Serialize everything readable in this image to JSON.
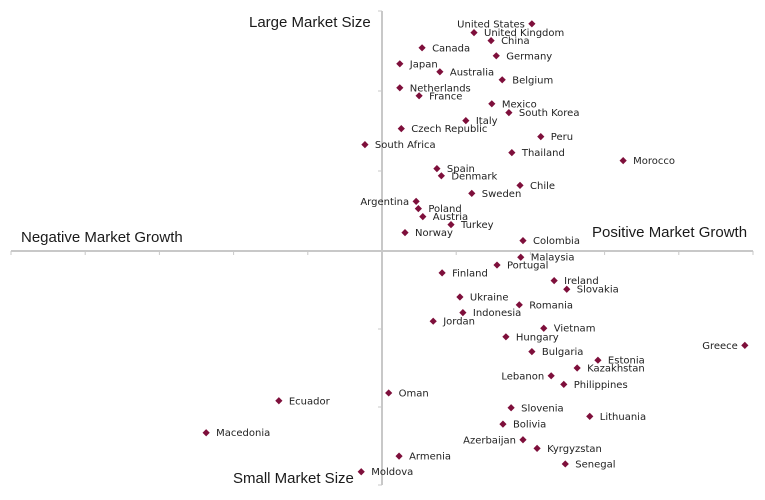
{
  "chart_data": {
    "type": "scatter",
    "title": "",
    "quadrant_labels": {
      "top": "Large Market Size",
      "bottom": "Small Market Size",
      "left": "Negative Market Growth",
      "right": "Positive Market Growth"
    },
    "xlabel": "Market Growth",
    "ylabel": "Market Size",
    "xlim": [
      -5,
      5
    ],
    "ylim": [
      -3,
      3
    ],
    "x_ticks": [
      -5,
      -4,
      -3,
      -2,
      -1,
      0,
      1,
      2,
      3,
      4,
      5
    ],
    "y_ticks": [
      -3,
      -2,
      -1,
      0,
      1,
      2,
      3
    ],
    "tick_labels_shown": false,
    "grid": false,
    "marker_color": "#7e0f3b",
    "marker_shape": "diamond",
    "points": [
      {
        "name": "United States",
        "x": 2.02,
        "y": 2.84,
        "label_side": "left"
      },
      {
        "name": "United Kingdom",
        "x": 1.24,
        "y": 2.73,
        "label_side": "right"
      },
      {
        "name": "China",
        "x": 1.47,
        "y": 2.63,
        "label_side": "right"
      },
      {
        "name": "Canada",
        "x": 0.54,
        "y": 2.54,
        "label_side": "right"
      },
      {
        "name": "Germany",
        "x": 1.54,
        "y": 2.44,
        "label_side": "right"
      },
      {
        "name": "Japan",
        "x": 0.24,
        "y": 2.34,
        "label_side": "right"
      },
      {
        "name": "Australia",
        "x": 0.78,
        "y": 2.24,
        "label_side": "right"
      },
      {
        "name": "Belgium",
        "x": 1.62,
        "y": 2.14,
        "label_side": "right"
      },
      {
        "name": "Netherlands",
        "x": 0.24,
        "y": 2.04,
        "label_side": "right"
      },
      {
        "name": "France",
        "x": 0.5,
        "y": 1.94,
        "label_side": "right"
      },
      {
        "name": "Mexico",
        "x": 1.48,
        "y": 1.84,
        "label_side": "right"
      },
      {
        "name": "South Korea",
        "x": 1.71,
        "y": 1.73,
        "label_side": "right"
      },
      {
        "name": "Italy",
        "x": 1.13,
        "y": 1.63,
        "label_side": "right"
      },
      {
        "name": "Czech Republic",
        "x": 0.26,
        "y": 1.53,
        "label_side": "right"
      },
      {
        "name": "Peru",
        "x": 2.14,
        "y": 1.43,
        "label_side": "right"
      },
      {
        "name": "South Africa",
        "x": -0.23,
        "y": 1.33,
        "label_side": "right"
      },
      {
        "name": "Thailand",
        "x": 1.75,
        "y": 1.23,
        "label_side": "right"
      },
      {
        "name": "Morocco",
        "x": 3.25,
        "y": 1.13,
        "label_side": "right"
      },
      {
        "name": "Spain",
        "x": 0.74,
        "y": 1.03,
        "label_side": "right"
      },
      {
        "name": "Denmark",
        "x": 0.8,
        "y": 0.94,
        "label_side": "right"
      },
      {
        "name": "Chile",
        "x": 1.86,
        "y": 0.82,
        "label_side": "right"
      },
      {
        "name": "Sweden",
        "x": 1.21,
        "y": 0.72,
        "label_side": "right"
      },
      {
        "name": "Argentina",
        "x": 0.46,
        "y": 0.62,
        "label_side": "left"
      },
      {
        "name": "Poland",
        "x": 0.49,
        "y": 0.53,
        "label_side": "right"
      },
      {
        "name": "Austria",
        "x": 0.55,
        "y": 0.43,
        "label_side": "right"
      },
      {
        "name": "Turkey",
        "x": 0.93,
        "y": 0.33,
        "label_side": "right"
      },
      {
        "name": "Norway",
        "x": 0.31,
        "y": 0.23,
        "label_side": "right"
      },
      {
        "name": "Colombia",
        "x": 1.9,
        "y": 0.13,
        "label_side": "right"
      },
      {
        "name": "Malaysia",
        "x": 1.87,
        "y": -0.08,
        "label_side": "right"
      },
      {
        "name": "Portugal",
        "x": 1.55,
        "y": -0.18,
        "label_side": "right"
      },
      {
        "name": "Finland",
        "x": 0.81,
        "y": -0.28,
        "label_side": "right"
      },
      {
        "name": "Ireland",
        "x": 2.32,
        "y": -0.38,
        "label_side": "right"
      },
      {
        "name": "Slovakia",
        "x": 2.49,
        "y": -0.49,
        "label_side": "right"
      },
      {
        "name": "Ukraine",
        "x": 1.05,
        "y": -0.59,
        "label_side": "right"
      },
      {
        "name": "Romania",
        "x": 1.85,
        "y": -0.69,
        "label_side": "right"
      },
      {
        "name": "Indonesia",
        "x": 1.09,
        "y": -0.79,
        "label_side": "right"
      },
      {
        "name": "Jordan",
        "x": 0.69,
        "y": -0.9,
        "label_side": "right"
      },
      {
        "name": "Vietnam",
        "x": 2.18,
        "y": -0.99,
        "label_side": "right"
      },
      {
        "name": "Hungary",
        "x": 1.67,
        "y": -1.1,
        "label_side": "right"
      },
      {
        "name": "Greece",
        "x": 4.89,
        "y": -1.21,
        "label_side": "left"
      },
      {
        "name": "Bulgaria",
        "x": 2.02,
        "y": -1.29,
        "label_side": "right"
      },
      {
        "name": "Estonia",
        "x": 2.91,
        "y": -1.4,
        "label_side": "right"
      },
      {
        "name": "Kazakhstan",
        "x": 2.63,
        "y": -1.5,
        "label_side": "right"
      },
      {
        "name": "Lebanon",
        "x": 2.28,
        "y": -1.6,
        "label_side": "left"
      },
      {
        "name": "Philippines",
        "x": 2.45,
        "y": -1.71,
        "label_side": "right"
      },
      {
        "name": "Oman",
        "x": 0.09,
        "y": -1.82,
        "label_side": "right"
      },
      {
        "name": "Ecuador",
        "x": -1.39,
        "y": -1.92,
        "label_side": "right"
      },
      {
        "name": "Slovenia",
        "x": 1.74,
        "y": -2.01,
        "label_side": "right"
      },
      {
        "name": "Lithuania",
        "x": 2.8,
        "y": -2.12,
        "label_side": "right"
      },
      {
        "name": "Bolivia",
        "x": 1.63,
        "y": -2.22,
        "label_side": "right"
      },
      {
        "name": "Macedonia",
        "x": -2.37,
        "y": -2.33,
        "label_side": "right"
      },
      {
        "name": "Azerbaijan",
        "x": 1.9,
        "y": -2.42,
        "label_side": "left"
      },
      {
        "name": "Kyrgyzstan",
        "x": 2.09,
        "y": -2.53,
        "label_side": "right"
      },
      {
        "name": "Armenia",
        "x": 0.23,
        "y": -2.63,
        "label_side": "right"
      },
      {
        "name": "Senegal",
        "x": 2.47,
        "y": -2.73,
        "label_side": "right"
      },
      {
        "name": "Moldova",
        "x": -0.28,
        "y": -2.83,
        "label_side": "right"
      }
    ]
  }
}
